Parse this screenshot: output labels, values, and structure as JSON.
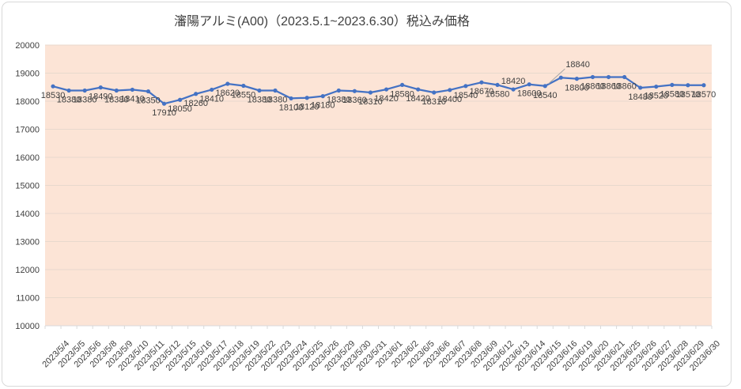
{
  "chart_data": {
    "type": "line",
    "title": "瀋陽アルミ(A00)（2023.5.1~2023.6.30）税込み価格",
    "categories": [
      "2023/5/4",
      "2023/5/5",
      "2023/5/6",
      "2023/5/8",
      "2023/5/9",
      "2023/5/10",
      "2023/5/11",
      "2023/5/12",
      "2023/5/15",
      "2023/5/16",
      "2023/5/17",
      "2023/5/18",
      "2023/5/19",
      "2023/5/22",
      "2023/5/23",
      "2023/5/24",
      "2023/5/25",
      "2023/5/26",
      "2023/5/29",
      "2023/5/30",
      "2023/5/31",
      "2023/6/1",
      "2023/6/2",
      "2023/6/5",
      "2023/6/6",
      "2023/6/7",
      "2023/6/8",
      "2023/6/9",
      "2023/6/12",
      "2023/6/13",
      "2023/6/14",
      "2023/6/15",
      "2023/6/16",
      "2023/6/19",
      "2023/6/20",
      "2023/6/21",
      "2023/6/25",
      "2023/6/26",
      "2023/6/27",
      "2023/6/28",
      "2023/6/29",
      "2023/6/30"
    ],
    "series": [
      {
        "name": "税込み価格",
        "values": [
          18530,
          18380,
          18380,
          18490,
          18380,
          18410,
          18350,
          17910,
          18050,
          18260,
          18410,
          18620,
          18550,
          18380,
          18380,
          18100,
          18120,
          18180,
          18380,
          18360,
          18310,
          18420,
          18580,
          18420,
          18310,
          18400,
          18540,
          18670,
          18580,
          18420,
          18600,
          18540,
          18840,
          18800,
          18860,
          18860,
          18860,
          18480,
          18520,
          18580,
          18570,
          18570
        ]
      }
    ],
    "ylim": [
      10000,
      20000
    ],
    "ytick_interval": 1000,
    "grid": true,
    "legend": "none",
    "data_labels": true,
    "label_placement": {
      "29": "above",
      "32": "leader"
    },
    "colors": {
      "line": "#4472C4",
      "marker": "#4472C4",
      "plot_bg": "#FCE4D6",
      "gridline": "#E8D9CD",
      "axis": "#D9D9D9",
      "text": "#404040",
      "leader": "#A6A6A6",
      "chart_border": "#D9D9D9",
      "background": "#FFFFFF"
    }
  }
}
